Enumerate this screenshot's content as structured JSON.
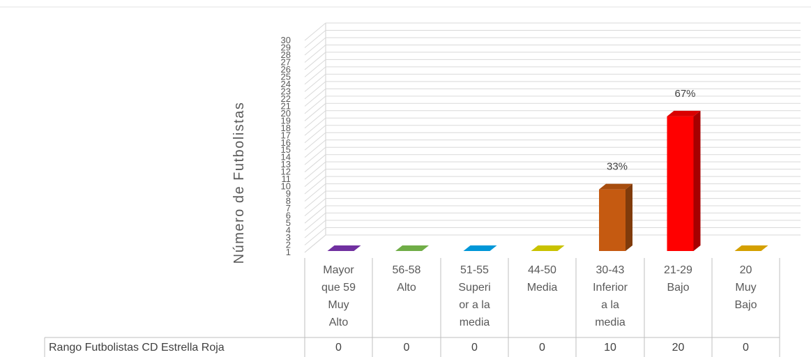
{
  "chart_data": {
    "type": "bar",
    "ylabel": "Número de Futbolistas",
    "ylim": [
      1,
      30
    ],
    "y_ticks": [
      "1",
      "2",
      "3",
      "4",
      "5",
      "6",
      "7",
      "8",
      "9",
      "10",
      "11",
      "12",
      "13",
      "14",
      "15",
      "16",
      "17",
      "18",
      "19",
      "20",
      "21",
      "22",
      "23",
      "24",
      "25",
      "26",
      "27",
      "28",
      "29",
      "30"
    ],
    "categories": [
      [
        "Mayor",
        "que 59",
        "Muy",
        "Alto"
      ],
      [
        "56-58",
        "Alto"
      ],
      [
        "51-55",
        "Superi",
        "or a la",
        "media"
      ],
      [
        "44-50",
        "Media"
      ],
      [
        "30-43",
        "Inferior",
        "a la",
        "media"
      ],
      [
        "21-29",
        "Bajo"
      ],
      [
        "20",
        "Muy",
        "Bajo"
      ]
    ],
    "series": [
      {
        "name": "Rango Futbolistas CD Estrella Roja",
        "values": [
          0,
          0,
          0,
          0,
          10,
          20,
          0
        ],
        "display_values": [
          "0",
          "0",
          "0",
          "0",
          "10",
          "20",
          "0"
        ],
        "data_labels": [
          "",
          "",
          "",
          "",
          "33%",
          "67%",
          ""
        ]
      }
    ],
    "bar_colors": [
      "#7030a0",
      "#70ad47",
      "#0097d8",
      "#c9c200",
      "#c55a11",
      "#ff0000",
      "#d4a000"
    ],
    "grid": true,
    "legend": "data-table"
  }
}
